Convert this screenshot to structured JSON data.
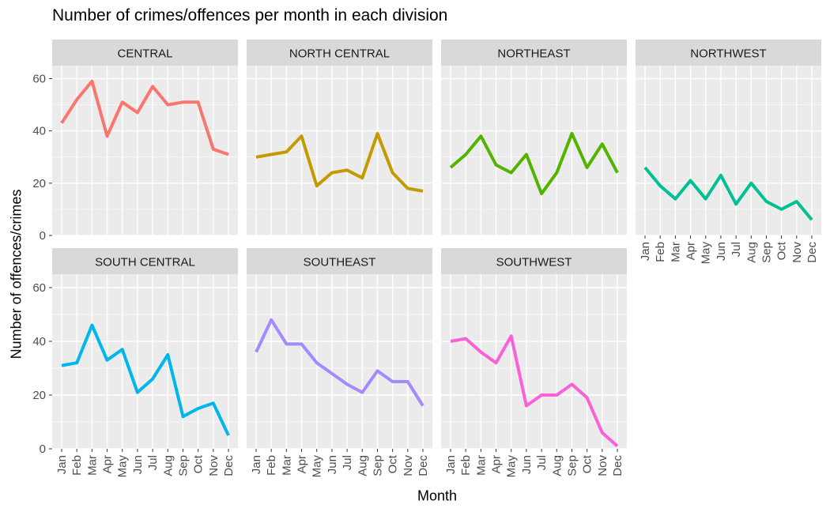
{
  "chart_data": {
    "type": "line",
    "title": "Number of crimes/offences per month in each division",
    "xlabel": "Month",
    "ylabel": "Number of offences/crimes",
    "categories": [
      "Jan",
      "Feb",
      "Mar",
      "Apr",
      "May",
      "Jun",
      "Jul",
      "Aug",
      "Sep",
      "Oct",
      "Nov",
      "Dec"
    ],
    "ylim": [
      0,
      65
    ],
    "yticks": [
      0,
      20,
      40,
      60
    ],
    "grid": true,
    "legend": "none",
    "panel_background": "#EBEBEB",
    "strip_background": "#D9D9D9",
    "series": [
      {
        "name": "CENTRAL",
        "color": "#F8766D",
        "values": [
          43,
          52,
          59,
          38,
          51,
          47,
          57,
          50,
          51,
          51,
          33,
          31
        ]
      },
      {
        "name": "NORTH CENTRAL",
        "color": "#C49A00",
        "values": [
          30,
          31,
          32,
          38,
          19,
          24,
          25,
          22,
          39,
          24,
          18,
          17
        ]
      },
      {
        "name": "NORTHEAST",
        "color": "#53B400",
        "values": [
          26,
          31,
          38,
          27,
          24,
          31,
          16,
          24,
          39,
          26,
          35,
          24
        ]
      },
      {
        "name": "NORTHWEST",
        "color": "#00C094",
        "values": [
          26,
          19,
          14,
          21,
          14,
          23,
          12,
          20,
          13,
          10,
          13,
          6
        ]
      },
      {
        "name": "SOUTH CENTRAL",
        "color": "#00B6EB",
        "values": [
          31,
          32,
          46,
          33,
          37,
          21,
          26,
          35,
          12,
          15,
          17,
          5
        ]
      },
      {
        "name": "SOUTHEAST",
        "color": "#A58AFF",
        "values": [
          36,
          48,
          39,
          39,
          32,
          28,
          24,
          21,
          29,
          25,
          25,
          16
        ]
      },
      {
        "name": "SOUTHWEST",
        "color": "#FB61D7",
        "values": [
          40,
          41,
          36,
          32,
          42,
          16,
          20,
          20,
          24,
          19,
          6,
          1
        ]
      }
    ]
  }
}
